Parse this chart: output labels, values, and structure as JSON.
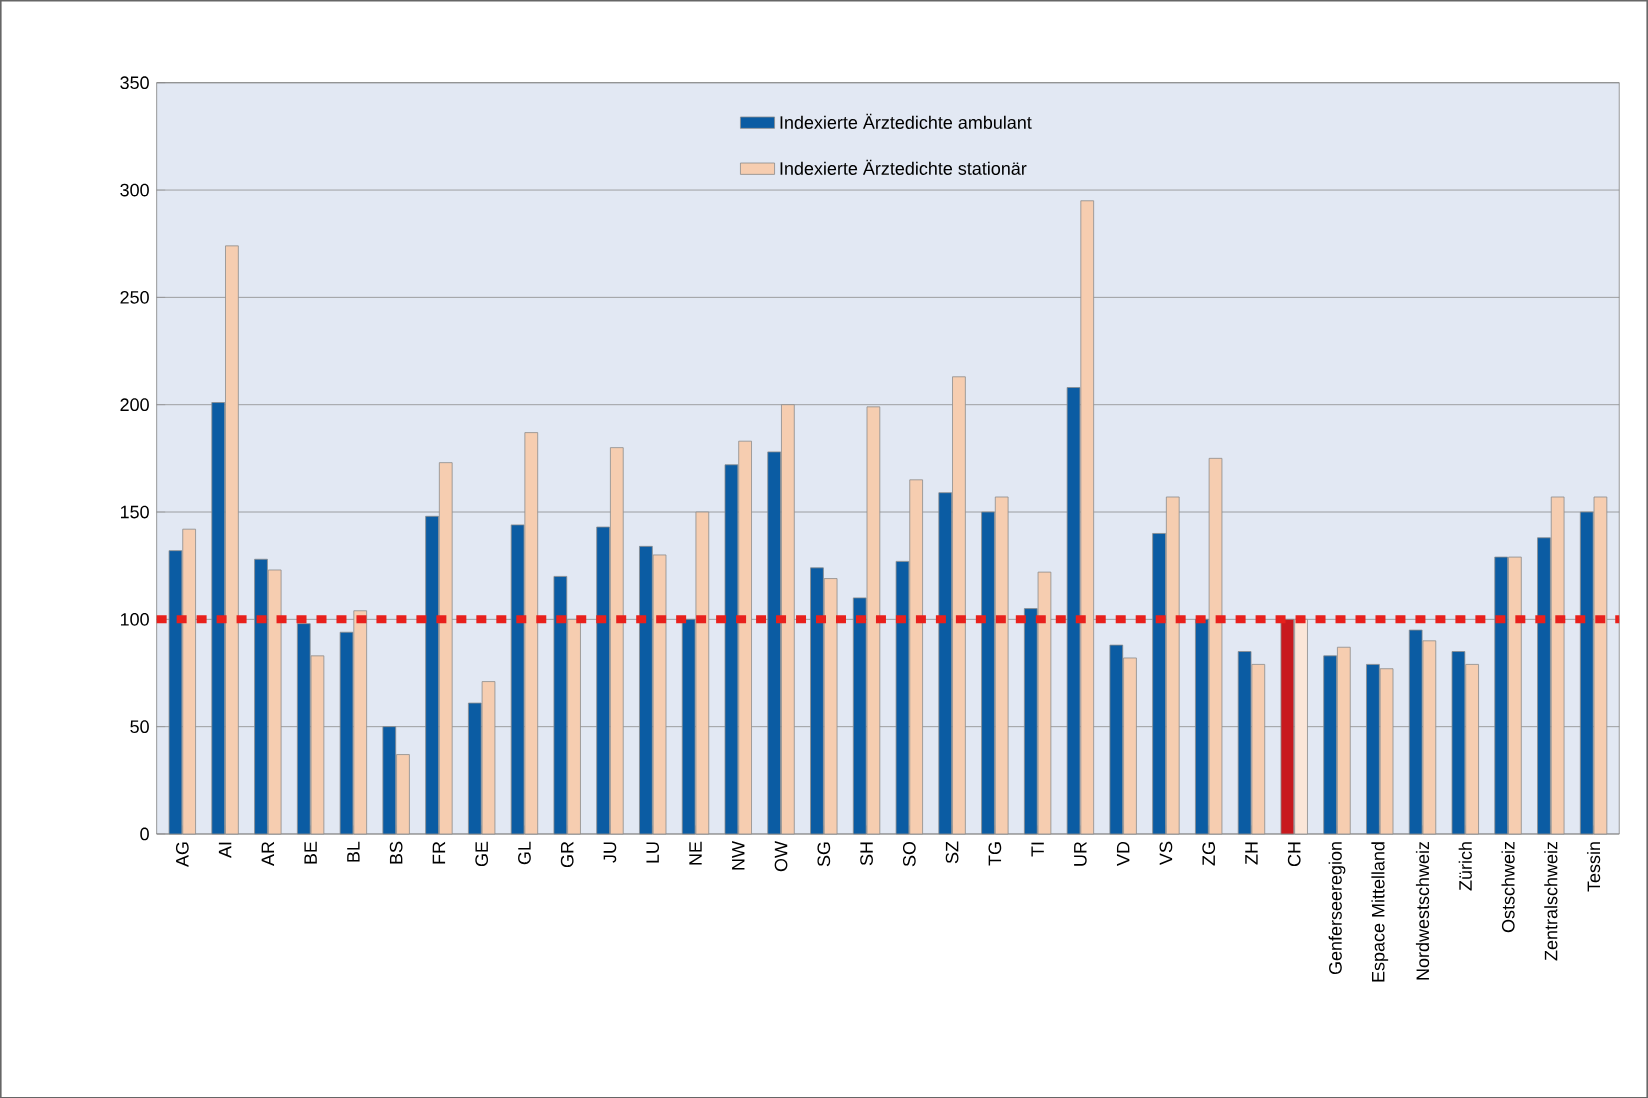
{
  "chart_data": {
    "type": "bar",
    "categories": [
      "AG",
      "AI",
      "AR",
      "BE",
      "BL",
      "BS",
      "FR",
      "GE",
      "GL",
      "GR",
      "JU",
      "LU",
      "NE",
      "NW",
      "OW",
      "SG",
      "SH",
      "SO",
      "SZ",
      "TG",
      "TI",
      "UR",
      "VD",
      "VS",
      "ZG",
      "ZH",
      "CH",
      "Genferseeregion",
      "Espace Mittelland",
      "Nordwestschweiz",
      "Zürich",
      "Ostschweiz",
      "Zentralschweiz",
      "Tessin"
    ],
    "series": [
      {
        "name": "Indexierte Ärztedichte ambulant",
        "color": "#0b5ca3",
        "colors": [
          "#0b5ca3",
          "#0b5ca3",
          "#0b5ca3",
          "#0b5ca3",
          "#0b5ca3",
          "#0b5ca3",
          "#0b5ca3",
          "#0b5ca3",
          "#0b5ca3",
          "#0b5ca3",
          "#0b5ca3",
          "#0b5ca3",
          "#0b5ca3",
          "#0b5ca3",
          "#0b5ca3",
          "#0b5ca3",
          "#0b5ca3",
          "#0b5ca3",
          "#0b5ca3",
          "#0b5ca3",
          "#0b5ca3",
          "#0b5ca3",
          "#0b5ca3",
          "#0b5ca3",
          "#0b5ca3",
          "#0b5ca3",
          "#c8191e",
          "#0b5ca3",
          "#0b5ca3",
          "#0b5ca3",
          "#0b5ca3",
          "#0b5ca3",
          "#0b5ca3",
          "#0b5ca3"
        ],
        "values": [
          132,
          201,
          128,
          98,
          94,
          50,
          148,
          61,
          144,
          120,
          143,
          134,
          100,
          172,
          178,
          124,
          110,
          127,
          159,
          150,
          105,
          208,
          88,
          140,
          100,
          85,
          100,
          83,
          79,
          95,
          85,
          129,
          138,
          150
        ]
      },
      {
        "name": "Indexierte Ärztedichte stationär",
        "color": "#f6cdb0",
        "colors": [
          "#f6cdb0",
          "#f6cdb0",
          "#f6cdb0",
          "#f6cdb0",
          "#f6cdb0",
          "#f6cdb0",
          "#f6cdb0",
          "#f6cdb0",
          "#f6cdb0",
          "#f6cdb0",
          "#f6cdb0",
          "#f6cdb0",
          "#f6cdb0",
          "#f6cdb0",
          "#f6cdb0",
          "#f6cdb0",
          "#f6cdb0",
          "#f6cdb0",
          "#f6cdb0",
          "#f6cdb0",
          "#f6cdb0",
          "#f6cdb0",
          "#f6cdb0",
          "#f6cdb0",
          "#f6cdb0",
          "#f6cdb0",
          "#fbe6d8",
          "#f6cdb0",
          "#f6cdb0",
          "#f6cdb0",
          "#f6cdb0",
          "#f6cdb0",
          "#f6cdb0",
          "#f6cdb0"
        ],
        "values": [
          142,
          274,
          123,
          83,
          104,
          37,
          173,
          71,
          187,
          100,
          180,
          130,
          150,
          183,
          200,
          119,
          199,
          165,
          213,
          157,
          122,
          295,
          82,
          157,
          175,
          79,
          100,
          87,
          77,
          90,
          79,
          129,
          157,
          157
        ]
      }
    ],
    "ylim": [
      0,
      350
    ],
    "yticks": [
      0,
      50,
      100,
      150,
      200,
      250,
      300,
      350
    ],
    "grid": "y",
    "legend": "top",
    "ref_lines": [
      {
        "axis": "y",
        "value": 100,
        "color": "#e8201c",
        "line_style": "dotted"
      }
    ]
  }
}
